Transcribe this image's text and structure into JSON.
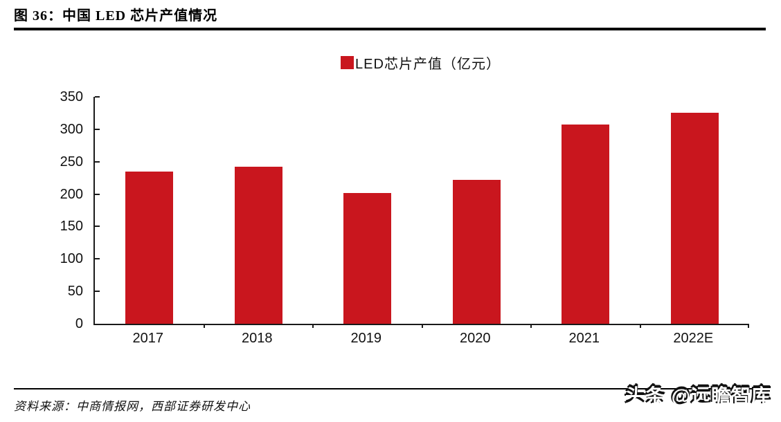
{
  "figure": {
    "title": "图 36：中国 LED 芯片产值情况",
    "source": "资料来源：中商情报网，西部证券研发中心",
    "watermark": "头条 @远瞻智库"
  },
  "chart_data": {
    "type": "bar",
    "title": "",
    "categories": [
      "2017",
      "2018",
      "2019",
      "2020",
      "2021",
      "2022E"
    ],
    "series": [
      {
        "name": "LED芯片产值（亿元）",
        "values": [
          235,
          242,
          202,
          222,
          307,
          326
        ]
      }
    ],
    "xlabel": "",
    "ylabel": "",
    "ylim": [
      0,
      350
    ],
    "yticks": [
      0,
      50,
      100,
      150,
      200,
      250,
      300,
      350
    ],
    "grid": false,
    "legend_position": "top-center",
    "bar_color": "#c9161e",
    "axis_color": "#1a1a1a",
    "text_color": "#111111"
  }
}
